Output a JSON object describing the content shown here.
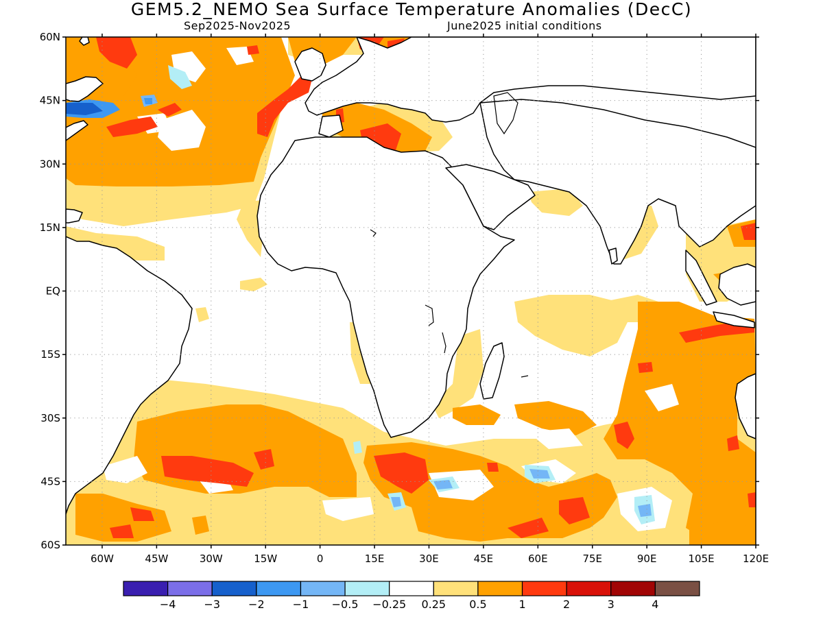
{
  "title": "GEM5.2_NEMO Sea Surface Temperature Anomalies (DecC)",
  "subtitle_left": "Sep2025-Nov2025",
  "subtitle_right": "June2025 initial conditions",
  "map": {
    "lon_range": [
      -70,
      120
    ],
    "lat_range": [
      -60,
      60
    ],
    "lat_labels": [
      "60N",
      "45N",
      "30N",
      "15N",
      "EQ",
      "15S",
      "30S",
      "45S",
      "60S"
    ],
    "lon_labels": [
      "60W",
      "45W",
      "30W",
      "15W",
      "0",
      "15E",
      "30E",
      "45E",
      "60E",
      "75E",
      "90E",
      "105E",
      "120E"
    ]
  },
  "colorbar": {
    "colors": [
      "#3a1fb0",
      "#7b6ee8",
      "#1660cc",
      "#3d98f2",
      "#74b6f6",
      "#b3eef6",
      "#ffffff",
      "#ffe17a",
      "#ffa100",
      "#ff3a0f",
      "#d91108",
      "#a10505",
      "#7a5044"
    ],
    "labels": [
      "-4",
      "-3",
      "-2",
      "-1",
      "-0.5",
      "-0.25",
      "0.25",
      "0.5",
      "1",
      "2",
      "3",
      "4"
    ]
  }
}
